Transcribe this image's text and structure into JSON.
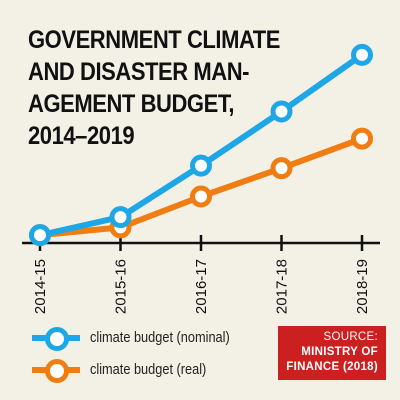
{
  "colors": {
    "background": "#f3f0e6",
    "nominal": "#1ea7e6",
    "real": "#f07d12",
    "axis": "#111111",
    "source_bg": "#cc1f1f"
  },
  "chart_data": {
    "type": "line",
    "title": "GOVERNMENT CLIMATE AND DISASTER MAN-AGEMENT BUDGET, 2014–2019",
    "title_lines": [
      "GOVERNMENT CLIMATE",
      "AND DISASTER MAN-",
      "AGEMENT BUDGET,",
      "2014–2019"
    ],
    "categories": [
      "2014-15",
      "2015-16",
      "2016-17",
      "2017-18",
      "2018-19"
    ],
    "series": [
      {
        "name": "climate budget (nominal)",
        "color": "#1ea7e6",
        "values": [
          1.0,
          2.4,
          6.4,
          10.6,
          15.0
        ]
      },
      {
        "name": "climate budget (real)",
        "color": "#f07d12",
        "values": [
          1.0,
          1.6,
          4.0,
          6.2,
          8.5
        ]
      }
    ],
    "ylim": [
      0,
      16
    ],
    "y_axis_labels": false,
    "grid": false,
    "legend_position": "bottom-left"
  },
  "legend": {
    "items": [
      {
        "label": "climate budget (nominal)",
        "color": "#1ea7e6"
      },
      {
        "label": "climate budget (real)",
        "color": "#f07d12"
      }
    ]
  },
  "source": {
    "heading": "SOURCE:",
    "line1": "MINISTRY OF",
    "line2": "FINANCE (2018)"
  }
}
